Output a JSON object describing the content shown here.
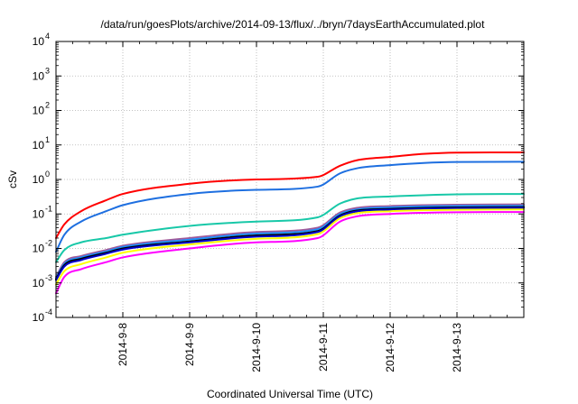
{
  "chart_data": {
    "type": "line",
    "title": "/data/run/goesPlots/archive/2014-09-13/flux/../bryn/7daysEarthAccumulated.plot",
    "xlabel": "Coordinated Universal Time (UTC)",
    "ylabel": "cSv",
    "yscale": "log",
    "ylim": [
      0.0001,
      10000
    ],
    "xlim": [
      "2014-09-07",
      "2014-09-14"
    ],
    "grid": true,
    "y_ticks": [
      {
        "base": "10",
        "exp": "-4"
      },
      {
        "base": "10",
        "exp": "-3"
      },
      {
        "base": "10",
        "exp": "-2"
      },
      {
        "base": "10",
        "exp": "-1"
      },
      {
        "base": "10",
        "exp": "0"
      },
      {
        "base": "10",
        "exp": "1"
      },
      {
        "base": "10",
        "exp": "2"
      },
      {
        "base": "10",
        "exp": "3"
      },
      {
        "base": "10",
        "exp": "4"
      }
    ],
    "x_ticks": [
      {
        "label": "2014-9-8",
        "value": "2014-09-08"
      },
      {
        "label": "2014-9-9",
        "value": "2014-09-09"
      },
      {
        "label": "2014-9-10",
        "value": "2014-09-10"
      },
      {
        "label": "2014-9-11",
        "value": "2014-09-11"
      },
      {
        "label": "2014-9-12",
        "value": "2014-09-12"
      },
      {
        "label": "2014-9-13",
        "value": "2014-09-13"
      }
    ],
    "x": [
      "2014-09-07 00:00",
      "2014-09-07 03:00",
      "2014-09-07 09:00",
      "2014-09-07 18:00",
      "2014-09-08 00:00",
      "2014-09-09 00:00",
      "2014-09-10 00:00",
      "2014-09-10 22:00",
      "2014-09-11 06:00",
      "2014-09-11 12:00",
      "2014-09-12 00:00",
      "2014-09-12 12:00",
      "2014-09-13 00:00",
      "2014-09-14 00:00"
    ],
    "series": [
      {
        "color": "#ff0000",
        "values": [
          0.02,
          0.05,
          0.12,
          0.25,
          0.38,
          0.75,
          1.0,
          1.2,
          2.5,
          3.6,
          4.5,
          5.5,
          6.0,
          6.1
        ]
      },
      {
        "color": "#1e6fe0",
        "values": [
          0.008,
          0.025,
          0.06,
          0.12,
          0.18,
          0.38,
          0.5,
          0.62,
          1.5,
          2.1,
          2.6,
          3.0,
          3.2,
          3.25
        ]
      },
      {
        "color": "#18c8a8",
        "values": [
          0.004,
          0.009,
          0.015,
          0.02,
          0.025,
          0.045,
          0.06,
          0.08,
          0.2,
          0.28,
          0.32,
          0.35,
          0.37,
          0.38
        ]
      },
      {
        "color": "#a05a9a",
        "values": [
          0.0015,
          0.004,
          0.006,
          0.009,
          0.012,
          0.02,
          0.03,
          0.04,
          0.11,
          0.15,
          0.17,
          0.18,
          0.185,
          0.19
        ]
      },
      {
        "color": "#1e90ff",
        "values": [
          0.0014,
          0.0036,
          0.0055,
          0.0082,
          0.011,
          0.018,
          0.027,
          0.036,
          0.1,
          0.135,
          0.155,
          0.165,
          0.17,
          0.172
        ]
      },
      {
        "color": "#000000",
        "values": [
          0.0013,
          0.0033,
          0.005,
          0.0075,
          0.01,
          0.016,
          0.024,
          0.032,
          0.09,
          0.125,
          0.14,
          0.15,
          0.155,
          0.158
        ]
      },
      {
        "color": "#0000cc",
        "values": [
          0.0012,
          0.003,
          0.0046,
          0.007,
          0.0093,
          0.015,
          0.022,
          0.03,
          0.085,
          0.118,
          0.133,
          0.142,
          0.147,
          0.15
        ]
      },
      {
        "color": "#ffff00",
        "values": [
          0.0009,
          0.0022,
          0.0035,
          0.0055,
          0.0075,
          0.013,
          0.019,
          0.026,
          0.075,
          0.105,
          0.12,
          0.128,
          0.132,
          0.135
        ]
      },
      {
        "color": "#ff00ff",
        "values": [
          0.0005,
          0.0015,
          0.0025,
          0.004,
          0.0055,
          0.01,
          0.015,
          0.02,
          0.06,
          0.085,
          0.1,
          0.108,
          0.112,
          0.114
        ]
      }
    ]
  }
}
